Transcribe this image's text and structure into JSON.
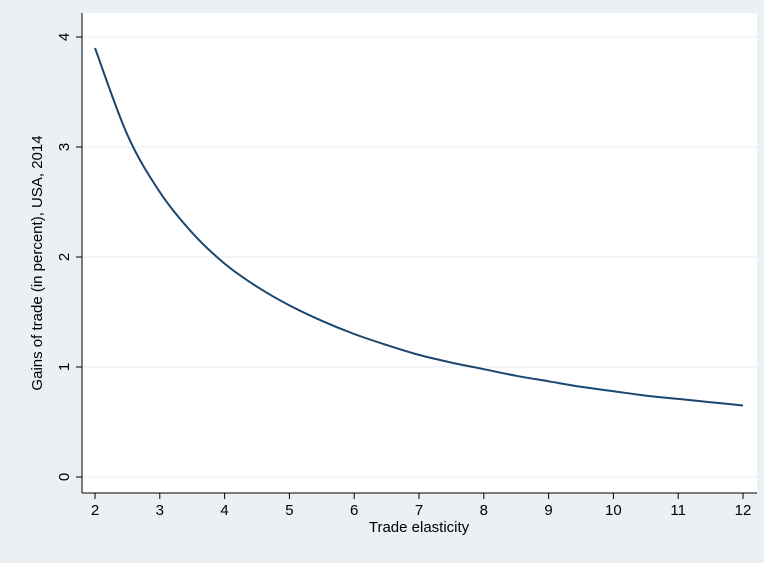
{
  "chart_data": {
    "type": "line",
    "title": "",
    "xlabel": "Trade elasticity",
    "ylabel": "Gains of trade (in percent), USA, 2014",
    "xlim": [
      2,
      12
    ],
    "ylim": [
      0,
      4
    ],
    "x_ticks": [
      2,
      3,
      4,
      5,
      6,
      7,
      8,
      9,
      10,
      11,
      12
    ],
    "y_ticks": [
      0,
      1,
      2,
      3,
      4
    ],
    "grid": "horizontal",
    "legend": "none",
    "series": [
      {
        "x": [
          2,
          2.5,
          3,
          3.5,
          4,
          4.5,
          5,
          5.5,
          6,
          6.5,
          7,
          7.5,
          8,
          8.5,
          9,
          9.5,
          10,
          10.5,
          11,
          11.5,
          12
        ],
        "values": [
          3.9,
          3.11,
          2.59,
          2.22,
          1.94,
          1.73,
          1.56,
          1.42,
          1.3,
          1.2,
          1.11,
          1.04,
          0.98,
          0.92,
          0.87,
          0.82,
          0.78,
          0.74,
          0.71,
          0.68,
          0.65
        ]
      }
    ],
    "colors": {
      "background": "#eaf0f4",
      "plot_area": "#ffffff",
      "grid": "#eaf0f4",
      "line": "#1a476f",
      "axis": "#000000"
    }
  }
}
